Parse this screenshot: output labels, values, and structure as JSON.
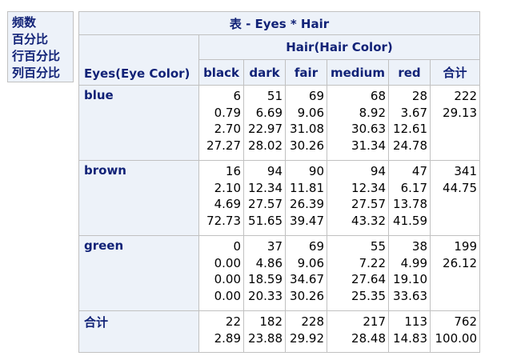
{
  "legend": [
    "频数",
    "百分比",
    "行百分比",
    "列百分比"
  ],
  "table": {
    "title": "表 - Eyes * Hair",
    "col_var_label": "Hair(Hair Color)",
    "row_var_label": "Eyes(Eye Color)",
    "columns": [
      "black",
      "dark",
      "fair",
      "medium",
      "red",
      "合计"
    ],
    "rows": [
      {
        "label": "blue",
        "cells": [
          [
            "6",
            "0.79",
            "2.70",
            "27.27"
          ],
          [
            "51",
            "6.69",
            "22.97",
            "28.02"
          ],
          [
            "69",
            "9.06",
            "31.08",
            "30.26"
          ],
          [
            "68",
            "8.92",
            "30.63",
            "31.34"
          ],
          [
            "28",
            "3.67",
            "12.61",
            "24.78"
          ],
          [
            "222",
            "29.13"
          ]
        ]
      },
      {
        "label": "brown",
        "cells": [
          [
            "16",
            "2.10",
            "4.69",
            "72.73"
          ],
          [
            "94",
            "12.34",
            "27.57",
            "51.65"
          ],
          [
            "90",
            "11.81",
            "26.39",
            "39.47"
          ],
          [
            "94",
            "12.34",
            "27.57",
            "43.32"
          ],
          [
            "47",
            "6.17",
            "13.78",
            "41.59"
          ],
          [
            "341",
            "44.75"
          ]
        ]
      },
      {
        "label": "green",
        "cells": [
          [
            "0",
            "0.00",
            "0.00",
            "0.00"
          ],
          [
            "37",
            "4.86",
            "18.59",
            "20.33"
          ],
          [
            "69",
            "9.06",
            "34.67",
            "30.26"
          ],
          [
            "55",
            "7.22",
            "27.64",
            "25.35"
          ],
          [
            "38",
            "4.99",
            "19.10",
            "33.63"
          ],
          [
            "199",
            "26.12"
          ]
        ]
      },
      {
        "label": "合计",
        "cells": [
          [
            "22",
            "2.89"
          ],
          [
            "182",
            "23.88"
          ],
          [
            "228",
            "29.92"
          ],
          [
            "217",
            "28.48"
          ],
          [
            "113",
            "14.83"
          ],
          [
            "762",
            "100.00"
          ]
        ]
      }
    ]
  }
}
